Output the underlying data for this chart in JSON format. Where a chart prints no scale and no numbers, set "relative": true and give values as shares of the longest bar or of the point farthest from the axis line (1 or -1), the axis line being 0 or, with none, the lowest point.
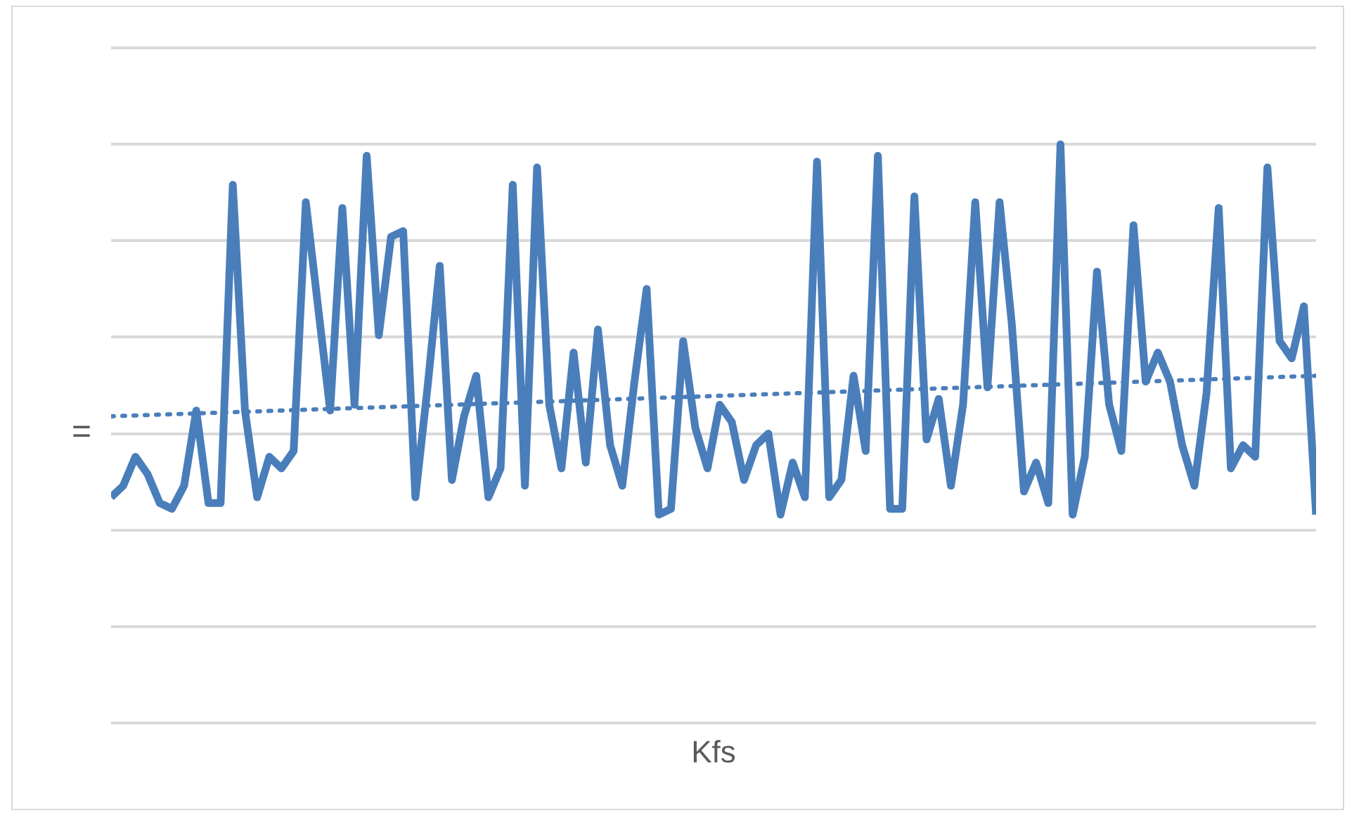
{
  "chart_data": {
    "type": "line",
    "xlabel": "Kfs",
    "ylabel": "=",
    "relative": true,
    "grid": "y",
    "legend": false,
    "marker": "none",
    "categories": [
      null,
      null,
      null,
      null,
      null,
      null,
      null,
      null,
      null,
      null,
      null,
      null,
      null,
      null,
      null,
      null,
      null,
      null,
      null,
      null,
      null,
      null,
      null,
      null,
      null,
      null,
      null,
      null,
      null,
      null,
      null,
      null,
      null,
      null,
      null,
      null,
      null,
      null,
      null,
      null,
      null,
      null,
      null,
      null,
      null,
      null,
      null,
      null,
      null,
      null,
      null,
      null,
      null,
      null,
      null,
      null,
      null,
      null,
      null,
      null,
      null,
      null,
      null,
      null,
      null,
      null,
      null,
      null,
      null,
      null,
      null,
      null,
      null,
      null,
      null,
      null,
      null,
      null,
      null,
      null,
      null,
      null,
      null,
      null,
      null,
      null,
      null,
      null,
      null,
      null,
      null,
      null,
      null,
      null,
      null,
      null,
      null,
      null,
      null,
      null
    ],
    "series": [
      {
        "color": "#4a7ebb",
        "line_style": "solid",
        "values": [
          0.39,
          0.41,
          0.46,
          0.43,
          0.38,
          0.37,
          0.41,
          0.54,
          0.38,
          0.38,
          0.93,
          0.54,
          0.39,
          0.46,
          0.44,
          0.47,
          0.9,
          0.72,
          0.54,
          0.89,
          0.55,
          0.98,
          0.67,
          0.84,
          0.85,
          0.39,
          0.58,
          0.79,
          0.42,
          0.53,
          0.6,
          0.39,
          0.44,
          0.93,
          0.41,
          0.96,
          0.55,
          0.44,
          0.64,
          0.45,
          0.68,
          0.48,
          0.41,
          0.59,
          0.75,
          0.36,
          0.37,
          0.66,
          0.51,
          0.44,
          0.55,
          0.52,
          0.42,
          0.48,
          0.5,
          0.36,
          0.45,
          0.39,
          0.97,
          0.39,
          0.42,
          0.6,
          0.47,
          0.98,
          0.37,
          0.37,
          0.91,
          0.49,
          0.56,
          0.41,
          0.55,
          0.9,
          0.58,
          0.9,
          0.69,
          0.4,
          0.45,
          0.38,
          1.0,
          0.36,
          0.46,
          0.78,
          0.55,
          0.47,
          0.86,
          0.59,
          0.64,
          0.59,
          0.48,
          0.41,
          0.57,
          0.89,
          0.44,
          0.48,
          0.46,
          0.96,
          0.66,
          0.63,
          0.72,
          0.36
        ]
      },
      {
        "type": "line",
        "color": "#4a7ebb",
        "line_style": "dotted",
        "values": [
          0.53,
          null,
          null,
          null,
          null,
          null,
          null,
          null,
          null,
          null,
          null,
          null,
          null,
          null,
          null,
          null,
          null,
          null,
          null,
          null,
          null,
          null,
          null,
          null,
          null,
          null,
          null,
          null,
          null,
          null,
          null,
          null,
          null,
          null,
          null,
          null,
          null,
          null,
          null,
          null,
          null,
          null,
          null,
          null,
          null,
          null,
          null,
          null,
          null,
          null,
          null,
          null,
          null,
          null,
          null,
          null,
          null,
          null,
          null,
          null,
          null,
          null,
          null,
          null,
          null,
          null,
          null,
          null,
          null,
          null,
          null,
          null,
          null,
          null,
          null,
          null,
          null,
          null,
          null,
          null,
          null,
          null,
          null,
          null,
          null,
          null,
          null,
          null,
          null,
          null,
          null,
          null,
          null,
          null,
          null,
          null,
          null,
          null,
          null,
          0.6
        ]
      }
    ]
  }
}
